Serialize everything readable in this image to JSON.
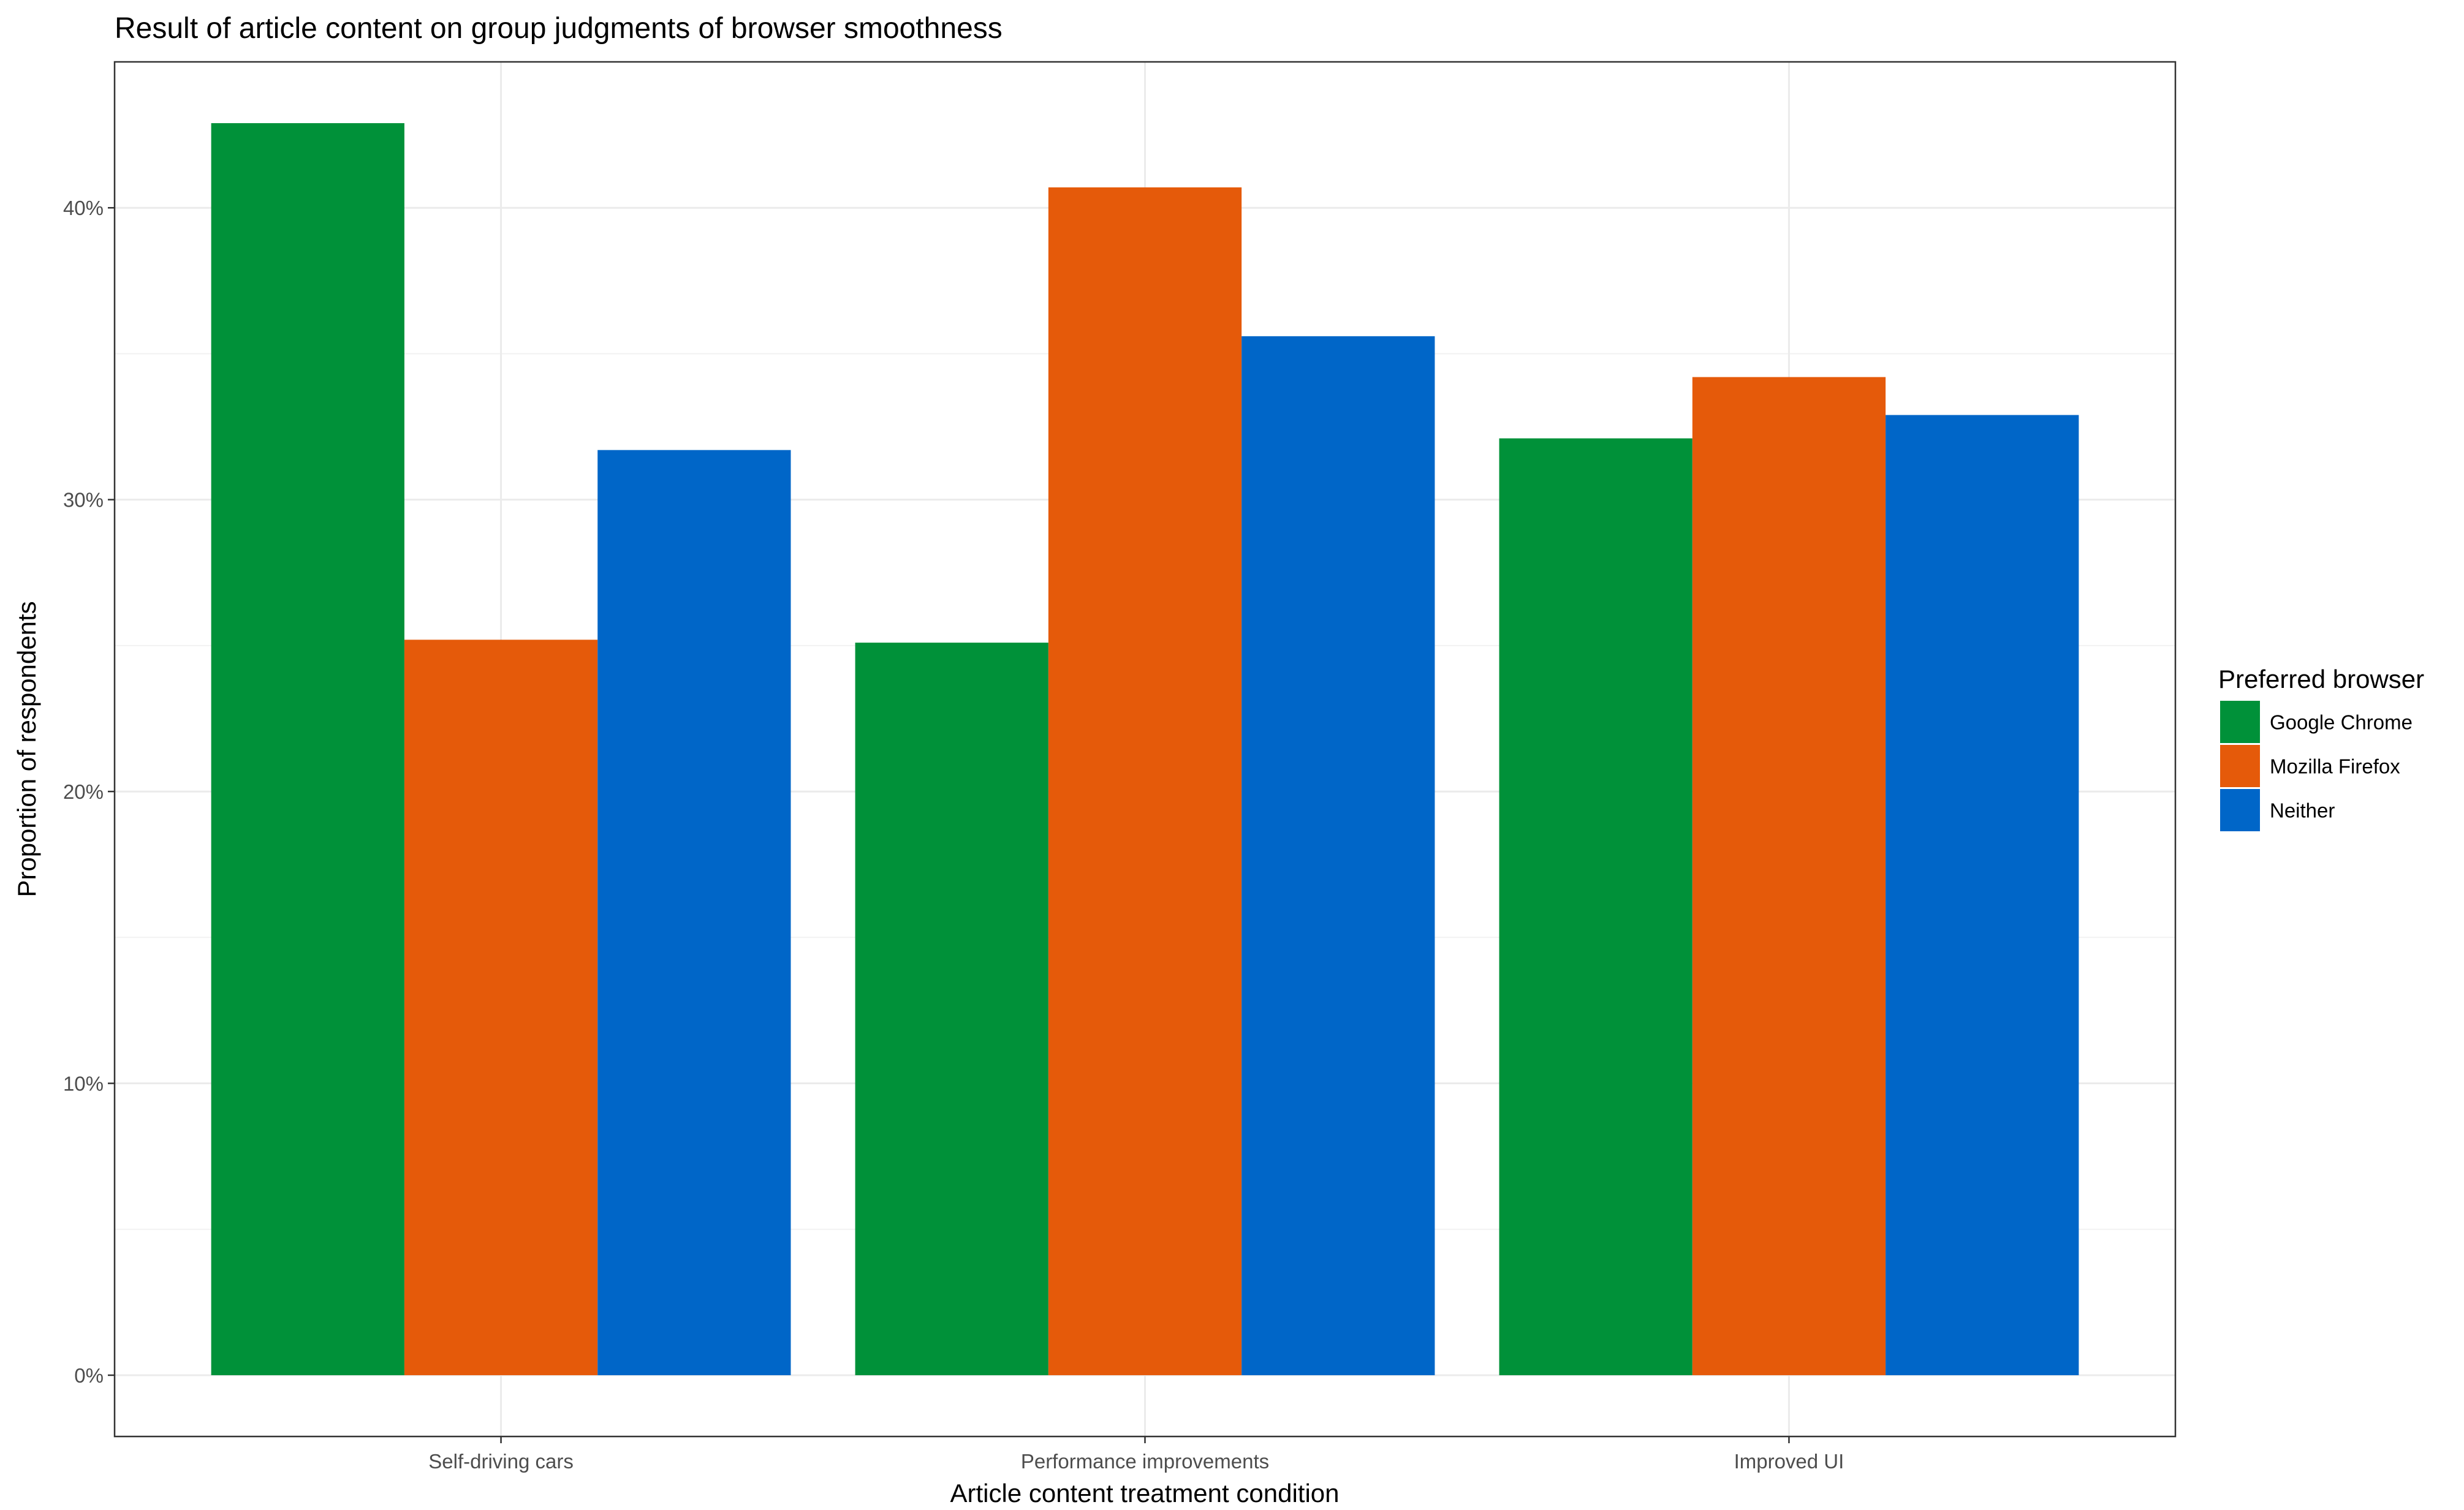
{
  "chart_data": {
    "type": "bar",
    "title": "Result of article content on group judgments of browser smoothness",
    "xlabel": "Article content treatment condition",
    "ylabel": "Proportion of respondents",
    "categories": [
      "Self-driving cars",
      "Performance improvements",
      "Improved UI"
    ],
    "series": [
      {
        "name": "Google Chrome",
        "color": "#009139",
        "values": [
          0.429,
          0.251,
          0.321
        ]
      },
      {
        "name": "Mozilla Firefox",
        "color": "#e55a0a",
        "values": [
          0.252,
          0.407,
          0.342
        ]
      },
      {
        "name": "Neither",
        "color": "#0066c8",
        "values": [
          0.317,
          0.356,
          0.329
        ]
      }
    ],
    "ylim": [
      -0.021,
      0.45
    ],
    "yticks": [
      0,
      0.1,
      0.2,
      0.3,
      0.4
    ],
    "ytick_labels": [
      "0%",
      "10%",
      "20%",
      "30%",
      "40%"
    ],
    "legend": {
      "title": "Preferred browser",
      "placement": "right"
    },
    "grid": true
  }
}
